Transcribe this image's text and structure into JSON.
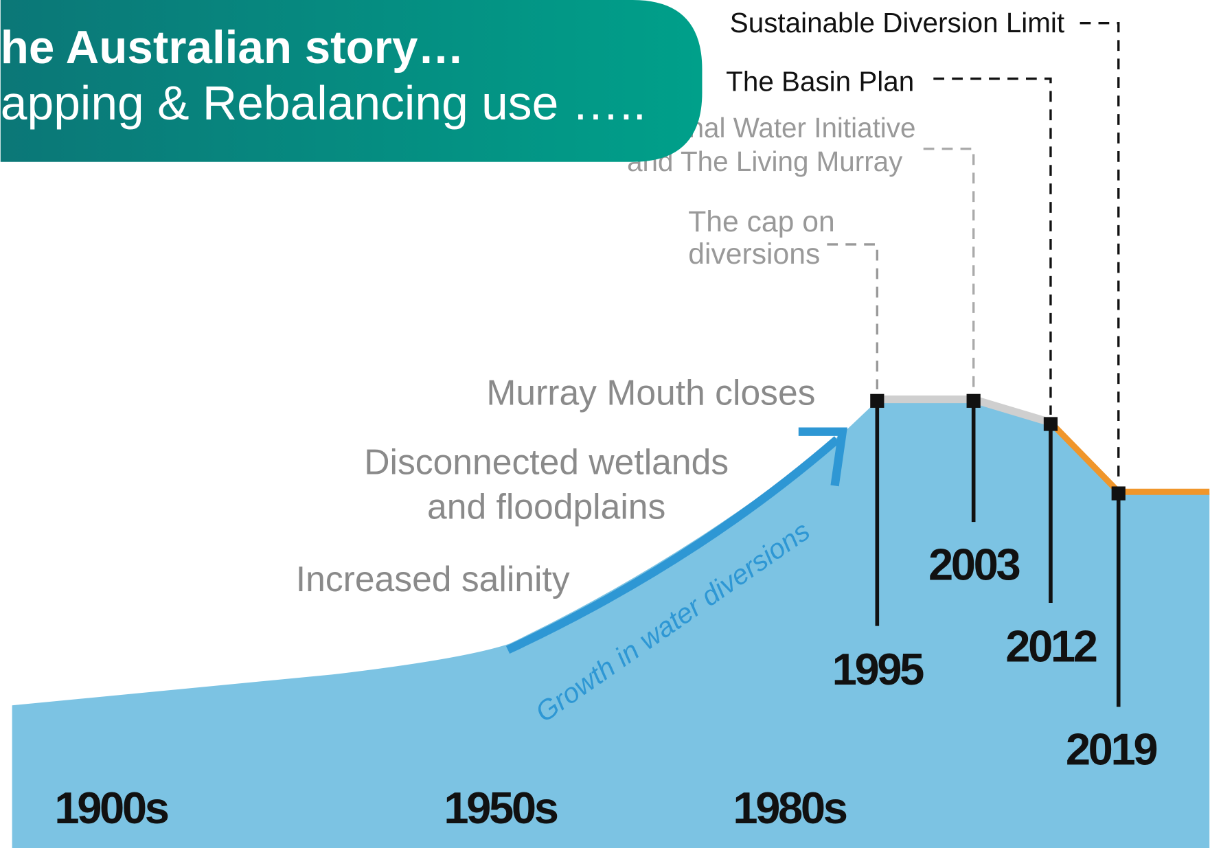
{
  "header": {
    "title": "he Australian story…",
    "subtitle": "apping & Rebalancing use ….."
  },
  "policies": {
    "sdl": "Sustainable Diversion Limit",
    "basin_plan": "The Basin Plan",
    "nwi": [
      "nal Water Initiative",
      "and The Living Murray"
    ],
    "cap": [
      "The cap on",
      "diversions"
    ]
  },
  "impacts": {
    "mouth": "Murray Mouth closes",
    "wetlands": [
      "Disconnected wetlands",
      "and floodplains"
    ],
    "salinity": "Increased salinity"
  },
  "trend_label": "Growth in water diversions",
  "years": {
    "events": [
      "1995",
      "2003",
      "2012",
      "2019"
    ],
    "decades": [
      "1900s",
      "1950s",
      "1980s"
    ]
  }
}
